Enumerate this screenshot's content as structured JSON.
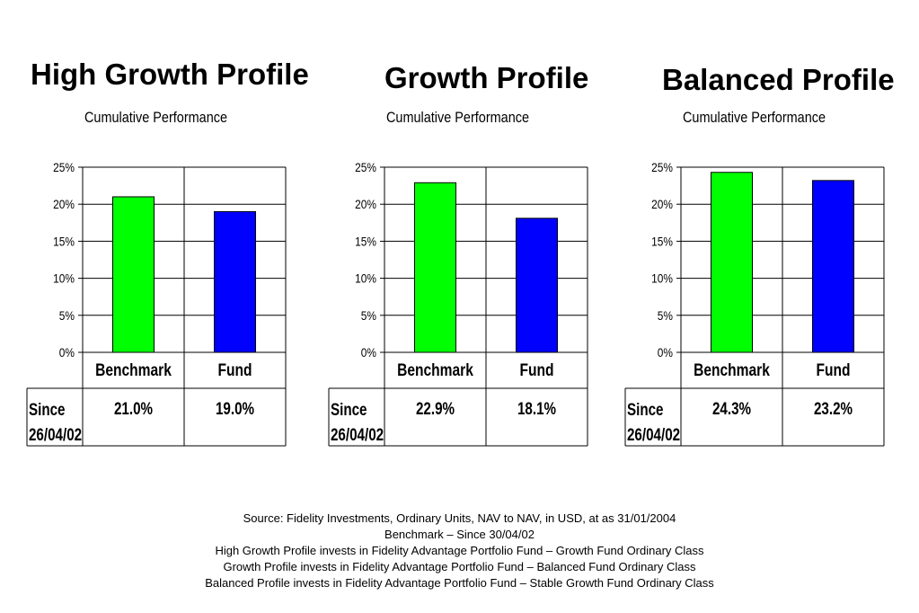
{
  "footer": {
    "lines": [
      "Source: Fidelity Investments, Ordinary Units, NAV to NAV, in USD, at as 31/01/2004",
      "Benchmark – Since 30/04/02",
      "High Growth Profile invests in Fidelity Advantage Portfolio Fund – Growth Fund Ordinary Class",
      "Growth Profile invests in Fidelity Advantage Portfolio Fund – Balanced Fund Ordinary Class",
      "Balanced Profile invests in Fidelity Advantage Portfolio Fund – Stable Growth Fund Ordinary Class"
    ]
  },
  "colors": {
    "benchmark": "#00ff00",
    "fund": "#0000ff",
    "grid": "#000000"
  },
  "chart_data": [
    {
      "type": "bar",
      "title": "High Growth Profile",
      "subtitle": "Cumulative Performance",
      "categories": [
        "Benchmark",
        "Fund"
      ],
      "values": [
        21.0,
        19.0
      ],
      "value_labels": [
        "21.0%",
        "19.0%"
      ],
      "yticks": [
        "0%",
        "5%",
        "10%",
        "15%",
        "20%",
        "25%"
      ],
      "ylim": [
        0,
        25
      ],
      "row_label": [
        "Since",
        "26/04/02"
      ],
      "grid": true
    },
    {
      "type": "bar",
      "title": "Growth Profile",
      "subtitle": "Cumulative Performance",
      "categories": [
        "Benchmark",
        "Fund"
      ],
      "values": [
        22.9,
        18.1
      ],
      "value_labels": [
        "22.9%",
        "18.1%"
      ],
      "yticks": [
        "0%",
        "5%",
        "10%",
        "15%",
        "20%",
        "25%"
      ],
      "ylim": [
        0,
        25
      ],
      "row_label": [
        "Since",
        "26/04/02"
      ],
      "grid": true
    },
    {
      "type": "bar",
      "title": "Balanced Profile",
      "subtitle": "Cumulative Performance",
      "categories": [
        "Benchmark",
        "Fund"
      ],
      "values": [
        24.3,
        23.2
      ],
      "value_labels": [
        "24.3%",
        "23.2%"
      ],
      "yticks": [
        "0%",
        "5%",
        "10%",
        "15%",
        "20%",
        "25%"
      ],
      "ylim": [
        0,
        25
      ],
      "row_label": [
        "Since",
        "26/04/02"
      ],
      "grid": true
    }
  ]
}
